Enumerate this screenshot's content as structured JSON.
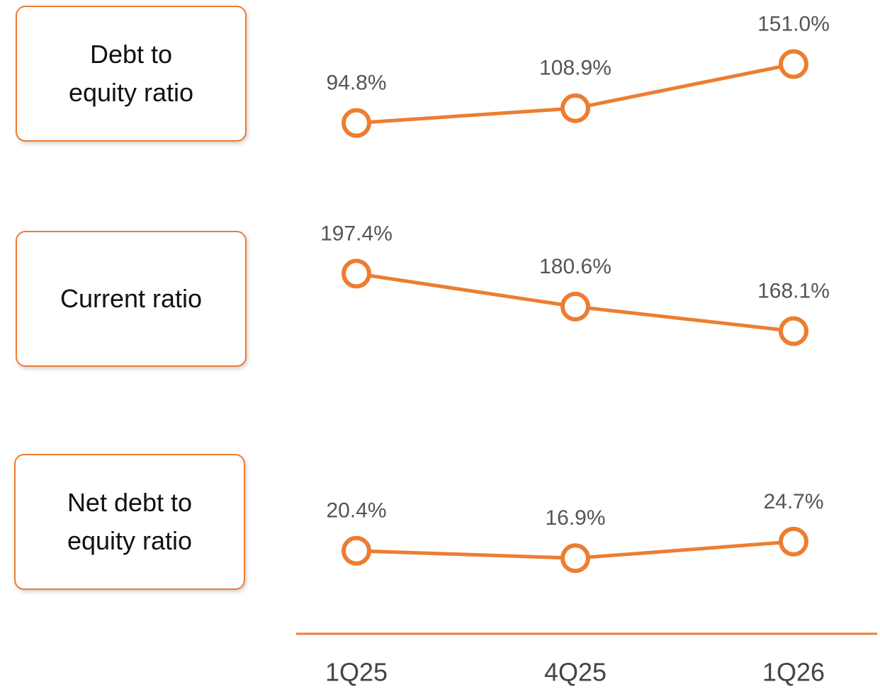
{
  "chart_data": {
    "type": "line",
    "categories": [
      "1Q25",
      "4Q25",
      "1Q26"
    ],
    "series": [
      {
        "name": "Debt to equity ratio",
        "color": "#ed7d31",
        "values": [
          94.8,
          108.9,
          151.0
        ],
        "value_labels": [
          "94.8%",
          "108.9%",
          "151.0%"
        ]
      },
      {
        "name": "Current ratio",
        "color": "#ed7d31",
        "values": [
          197.4,
          180.6,
          168.1
        ],
        "value_labels": [
          "197.4%",
          "180.6%",
          "168.1%"
        ]
      },
      {
        "name": "Net debt to equity ratio",
        "color": "#ed7d31",
        "values": [
          20.4,
          16.9,
          24.7
        ],
        "value_labels": [
          "20.4%",
          "16.9%",
          "24.7%"
        ]
      }
    ]
  }
}
